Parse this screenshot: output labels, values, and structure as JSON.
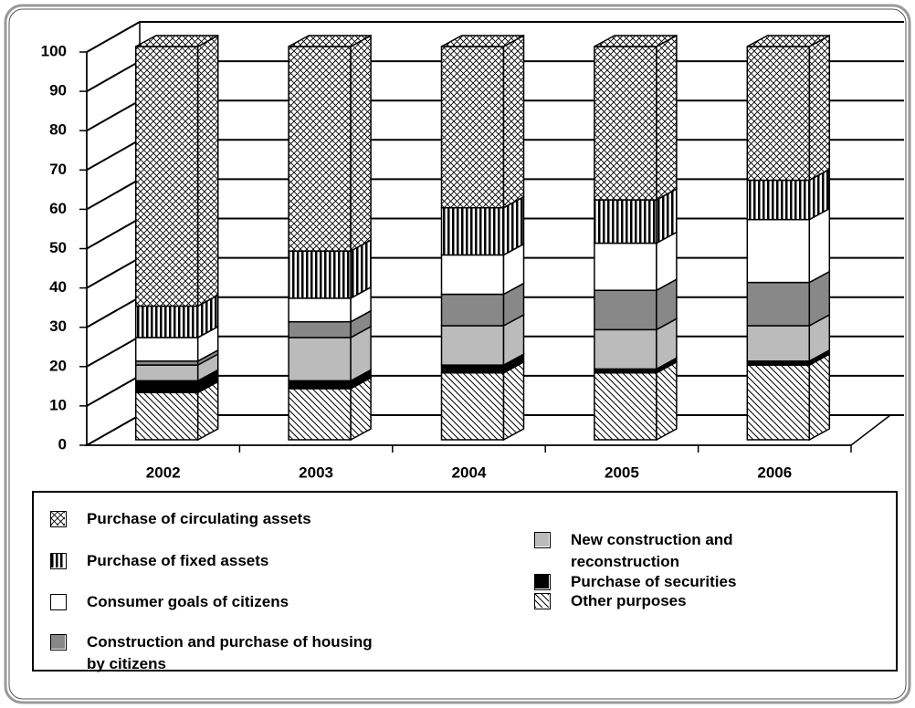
{
  "chart_data": {
    "type": "bar3d_stacked",
    "categories": [
      "2002",
      "2003",
      "2004",
      "2005",
      "2006"
    ],
    "series": [
      {
        "name": "Other purposes",
        "color": "#ffffff",
        "pattern": "diagonal",
        "values": [
          12,
          13,
          17,
          17,
          19
        ]
      },
      {
        "name": "Purchase of securities",
        "color": "#000000",
        "values": [
          3,
          2,
          2,
          1,
          1
        ]
      },
      {
        "name": "New construction and reconstruction",
        "color": "#bbbbbb",
        "values": [
          4,
          11,
          10,
          10,
          9
        ]
      },
      {
        "name": "Construction and purchase of housing by citizens",
        "color": "#888888",
        "values": [
          1,
          4,
          8,
          10,
          11
        ]
      },
      {
        "name": "Consumer goals of citizens",
        "color": "#ffffff",
        "values": [
          6,
          6,
          10,
          12,
          16
        ]
      },
      {
        "name": "Purchase of fixed assets",
        "color": "#ffffff",
        "pattern": "vstripes",
        "values": [
          8,
          12,
          12,
          11,
          10
        ]
      },
      {
        "name": "Purchase of circulating assets",
        "color": "#ffffff",
        "pattern": "crosshatch",
        "values": [
          66,
          52,
          41,
          39,
          34
        ]
      }
    ],
    "ylim": [
      0,
      100
    ],
    "yticks": [
      0,
      10,
      20,
      30,
      40,
      50,
      60,
      70,
      80,
      90,
      100
    ],
    "grid": true
  }
}
